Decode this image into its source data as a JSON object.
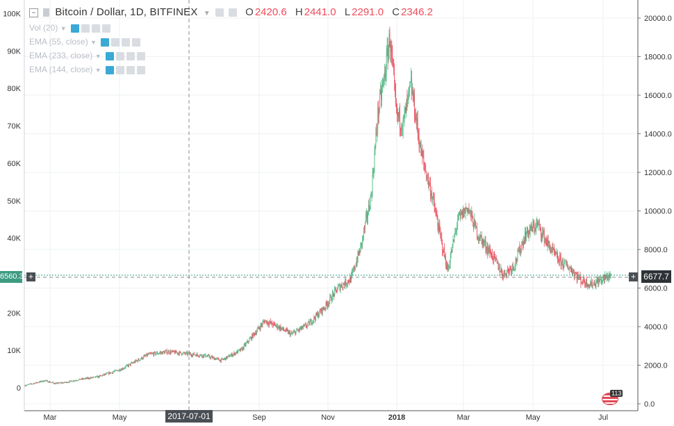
{
  "legend": {
    "symbol": "Bitcoin / Dollar, 1D, BITFINEX",
    "o_key": "O",
    "o": "2420.6",
    "h_key": "H",
    "h": "2441.0",
    "l_key": "L",
    "l": "2291.0",
    "c_key": "C",
    "c": "2346.2"
  },
  "indicators": [
    "Vol (20)",
    "EMA (55, close)",
    "EMA (233, close)",
    "EMA (144, close)"
  ],
  "price_tag_right": "6677.7",
  "crosshair_left_value": "6560.3",
  "crosshair_date": "2017-07-01",
  "badge_count": "113",
  "colors": {
    "up": "#53b987",
    "down": "#eb4d5c",
    "accent": "#3aa9d6",
    "price_line": "#2f9e86"
  },
  "chart_data": {
    "type": "candlestick",
    "title": "Bitcoin / Dollar, 1D, BITFINEX",
    "right_axis": {
      "ticks": [
        0,
        2000,
        4000,
        6000,
        8000,
        10000,
        12000,
        14000,
        16000,
        18000,
        20000
      ],
      "labels": [
        "0.0",
        "2000.0",
        "4000.0",
        "6000.0",
        "8000.0",
        "10000.0",
        "12000.0",
        "14000.0",
        "16000.0",
        "18000.0",
        "20000.0"
      ]
    },
    "left_axis": {
      "ticks": [
        0,
        10000,
        20000,
        30000,
        40000,
        50000,
        60000,
        70000,
        80000,
        90000,
        100000
      ],
      "labels": [
        "0",
        "10K",
        "20K",
        "30K",
        "40K",
        "50K",
        "60K",
        "70K",
        "80K",
        "90K",
        "100K"
      ]
    },
    "x_labels": [
      "Mar",
      "May",
      "Sep",
      "Nov",
      "2018",
      "Mar",
      "May",
      "Jul"
    ],
    "grid": true,
    "price_points": [
      [
        0,
        950
      ],
      [
        12,
        1050
      ],
      [
        30,
        1200
      ],
      [
        45,
        1050
      ],
      [
        60,
        1100
      ],
      [
        80,
        1250
      ],
      [
        110,
        1400
      ],
      [
        145,
        1800
      ],
      [
        185,
        2550
      ],
      [
        215,
        2700
      ],
      [
        240,
        2600
      ],
      [
        270,
        2500
      ],
      [
        295,
        2250
      ],
      [
        325,
        2800
      ],
      [
        360,
        4300
      ],
      [
        380,
        4000
      ],
      [
        400,
        3600
      ],
      [
        425,
        4100
      ],
      [
        450,
        5000
      ],
      [
        470,
        6000
      ],
      [
        490,
        6500
      ],
      [
        505,
        8200
      ],
      [
        520,
        10800
      ],
      [
        530,
        15000
      ],
      [
        540,
        17000
      ],
      [
        548,
        19000
      ],
      [
        558,
        15000
      ],
      [
        568,
        14500
      ],
      [
        580,
        16500
      ],
      [
        595,
        13000
      ],
      [
        610,
        11000
      ],
      [
        625,
        8500
      ],
      [
        635,
        6900
      ],
      [
        650,
        9500
      ],
      [
        665,
        10200
      ],
      [
        680,
        8800
      ],
      [
        700,
        7800
      ],
      [
        718,
        6700
      ],
      [
        735,
        7200
      ],
      [
        752,
        8800
      ],
      [
        770,
        9300
      ],
      [
        785,
        8300
      ],
      [
        800,
        7500
      ],
      [
        820,
        7000
      ],
      [
        835,
        6400
      ],
      [
        850,
        6200
      ],
      [
        865,
        6400
      ],
      [
        880,
        6680
      ]
    ]
  }
}
